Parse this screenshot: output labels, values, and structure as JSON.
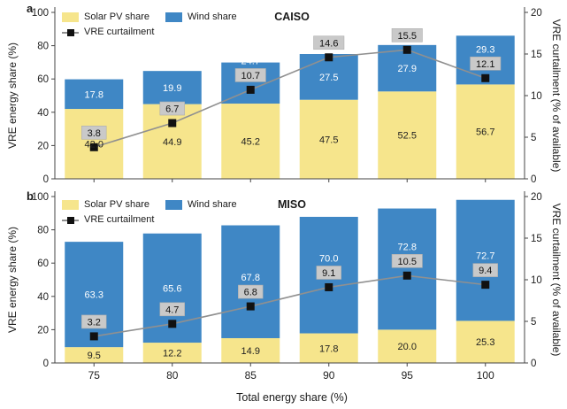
{
  "chart_data": {
    "type": "bar",
    "variant": "stacked-bars-with-curtailment-line",
    "categories": [
      "75",
      "80",
      "85",
      "90",
      "95",
      "100"
    ],
    "xlabel": "Total energy share (%)",
    "ylabel_left": "VRE energy share (%)",
    "ylabel_right": "VRE curtailment (% of available)",
    "ylim_left": [
      0,
      100
    ],
    "ylim_right": [
      0,
      20
    ],
    "left_ticks": [
      0,
      20,
      40,
      60,
      80,
      100
    ],
    "right_ticks": [
      0,
      5,
      10,
      15,
      20
    ],
    "grid": false,
    "legend_position": "upper-left-inside",
    "legend": [
      "Solar PV share",
      "Wind share",
      "VRE curtailment"
    ],
    "colors": {
      "solar": "#F6E58C",
      "wind": "#3F87C5",
      "line": "#909090",
      "marker": "#111111",
      "label_box": "#c9c9c9",
      "axis": "#444444"
    },
    "panels": [
      {
        "letter": "a",
        "title": "CAISO",
        "series": [
          {
            "name": "Solar PV share",
            "axis": "left",
            "values": [
              42.0,
              44.9,
              45.2,
              47.5,
              52.5,
              56.7
            ]
          },
          {
            "name": "Wind share",
            "axis": "left",
            "values": [
              17.8,
              19.9,
              24.7,
              27.5,
              27.9,
              29.3
            ]
          },
          {
            "name": "VRE curtailment",
            "axis": "right",
            "values": [
              3.8,
              6.7,
              10.7,
              14.6,
              15.5,
              12.1
            ]
          }
        ]
      },
      {
        "letter": "b",
        "title": "MISO",
        "series": [
          {
            "name": "Solar PV share",
            "axis": "left",
            "values": [
              9.5,
              12.2,
              14.9,
              17.8,
              20.0,
              25.3
            ]
          },
          {
            "name": "Wind share",
            "axis": "left",
            "values": [
              63.3,
              65.6,
              67.8,
              70.0,
              72.8,
              72.7
            ]
          },
          {
            "name": "VRE curtailment",
            "axis": "right",
            "values": [
              3.2,
              4.7,
              6.8,
              9.1,
              10.5,
              9.4
            ]
          }
        ]
      }
    ]
  }
}
